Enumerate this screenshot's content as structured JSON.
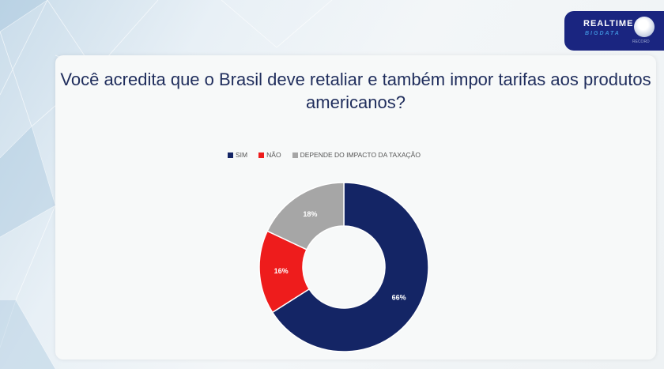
{
  "logo": {
    "line1": "REALTIME",
    "line2": "BIGDATA",
    "line3": "RECORD"
  },
  "chart_data": {
    "type": "pie",
    "donut": true,
    "title": "Você acredita que o Brasil deve retaliar e também impor tarifas aos produtos americanos?",
    "legend_position": "top",
    "categories": [
      "SIM",
      "NÃO",
      "DEPENDE DO IMPACTO DA TAXAÇÃO"
    ],
    "values": [
      66,
      16,
      18
    ],
    "labels": [
      "66%",
      "16%",
      "18%"
    ],
    "colors": [
      "#142565",
      "#ee1c1c",
      "#a6a6a6"
    ]
  }
}
